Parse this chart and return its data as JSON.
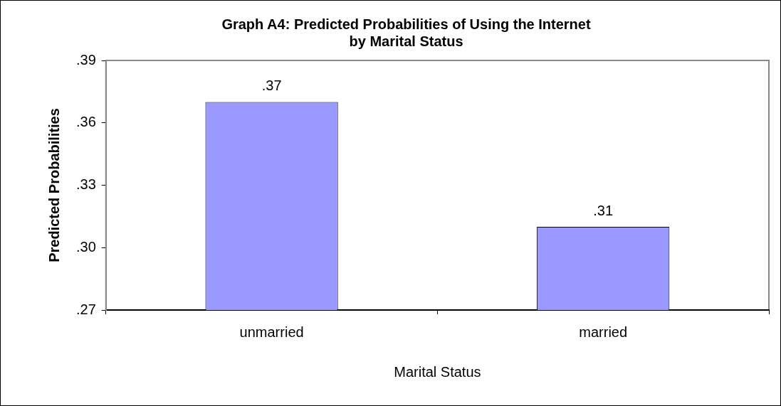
{
  "chart_data": {
    "type": "bar",
    "title": [
      "Graph A4: Predicted Probabilities of Using the Internet",
      "by Marital Status"
    ],
    "xlabel": "Marital Status",
    "ylabel": "Predicted Probabilities",
    "categories": [
      "unmarried",
      "married"
    ],
    "values": [
      0.37,
      0.31
    ],
    "color": "#9999ff",
    "value_labels": [
      ".37",
      ".31"
    ],
    "ylim": [
      0.27,
      0.39
    ],
    "yticks": [
      {
        "value": 0.27,
        "label": ".27"
      },
      {
        "value": 0.3,
        "label": ".30"
      },
      {
        "value": 0.33,
        "label": ".33"
      },
      {
        "value": 0.36,
        "label": ".36"
      },
      {
        "value": 0.39,
        "label": ".39"
      }
    ],
    "grid": false,
    "legend": false
  }
}
